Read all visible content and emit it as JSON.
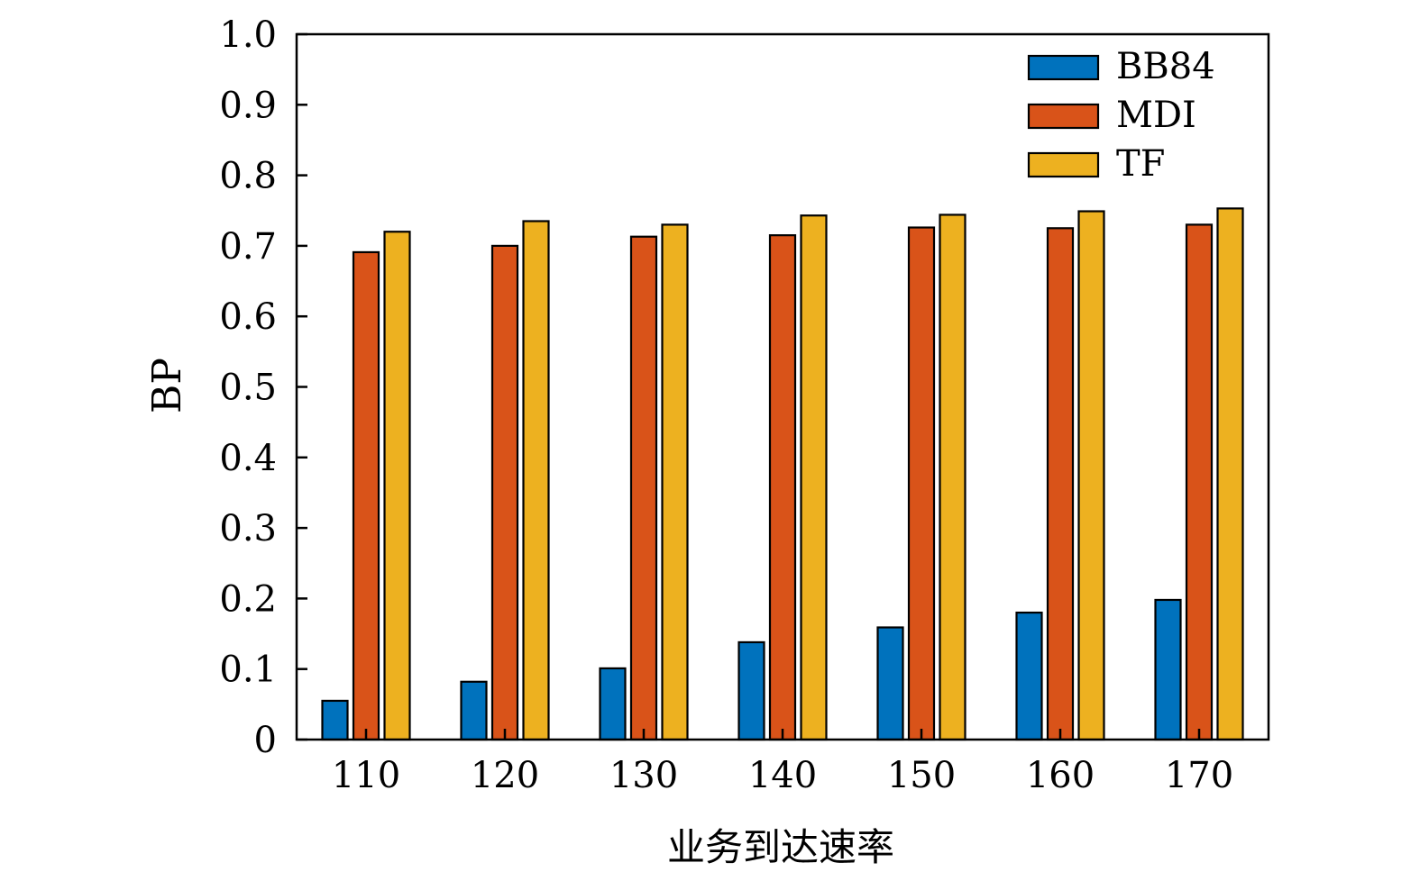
{
  "chart_data": {
    "type": "bar",
    "title": "",
    "xlabel": "业务到达速率",
    "ylabel": "BP",
    "categories": [
      "110",
      "120",
      "130",
      "140",
      "150",
      "160",
      "170"
    ],
    "ylim": [
      0,
      1.0
    ],
    "yticks": [
      "0",
      "0.1",
      "0.2",
      "0.3",
      "0.4",
      "0.5",
      "0.6",
      "0.7",
      "0.8",
      "0.9",
      "1.0"
    ],
    "grid": false,
    "legend_position": "top-right",
    "series": [
      {
        "name": "BB84",
        "color": "#0072BD",
        "values": [
          0.055,
          0.082,
          0.101,
          0.138,
          0.159,
          0.18,
          0.198
        ]
      },
      {
        "name": "MDI",
        "color": "#D95319",
        "values": [
          0.691,
          0.7,
          0.713,
          0.715,
          0.726,
          0.725,
          0.73
        ]
      },
      {
        "name": "TF",
        "color": "#EDB120",
        "values": [
          0.72,
          0.735,
          0.73,
          0.743,
          0.744,
          0.749,
          0.753
        ]
      }
    ]
  }
}
